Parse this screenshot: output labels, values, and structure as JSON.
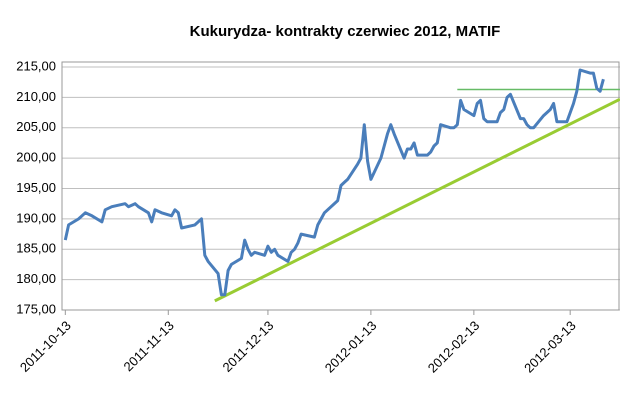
{
  "chart_data": {
    "type": "line",
    "title": "Kukurydza- kontrakty czerwiec 2012, MATIF",
    "x": [
      "2011-10-13",
      "2011-10-14",
      "2011-10-17",
      "2011-10-19",
      "2011-10-21",
      "2011-10-24",
      "2011-10-25",
      "2011-10-27",
      "2011-10-31",
      "2011-11-01",
      "2011-11-03",
      "2011-11-04",
      "2011-11-07",
      "2011-11-08",
      "2011-11-09",
      "2011-11-11",
      "2011-11-14",
      "2011-11-15",
      "2011-11-16",
      "2011-11-17",
      "2011-11-21",
      "2011-11-23",
      "2011-11-24",
      "2011-11-25",
      "2011-11-28",
      "2011-11-29",
      "2011-11-30",
      "2011-12-01",
      "2011-12-02",
      "2011-12-05",
      "2011-12-06",
      "2011-12-07",
      "2011-12-08",
      "2011-12-09",
      "2011-12-12",
      "2011-12-13",
      "2011-12-14",
      "2011-12-15",
      "2011-12-16",
      "2011-12-19",
      "2011-12-20",
      "2011-12-21",
      "2011-12-22",
      "2011-12-23",
      "2011-12-27",
      "2011-12-28",
      "2011-12-29",
      "2011-12-30",
      "2012-01-03",
      "2012-01-04",
      "2012-01-05",
      "2012-01-06",
      "2012-01-09",
      "2012-01-10",
      "2012-01-11",
      "2012-01-12",
      "2012-01-13",
      "2012-01-16",
      "2012-01-17",
      "2012-01-18",
      "2012-01-19",
      "2012-01-20",
      "2012-01-23",
      "2012-01-24",
      "2012-01-25",
      "2012-01-26",
      "2012-01-27",
      "2012-01-30",
      "2012-01-31",
      "2012-02-01",
      "2012-02-02",
      "2012-02-03",
      "2012-02-06",
      "2012-02-07",
      "2012-02-08",
      "2012-02-09",
      "2012-02-10",
      "2012-02-13",
      "2012-02-14",
      "2012-02-15",
      "2012-02-16",
      "2012-02-17",
      "2012-02-20",
      "2012-02-21",
      "2012-02-22",
      "2012-02-23",
      "2012-02-24",
      "2012-02-27",
      "2012-02-28",
      "2012-02-29",
      "2012-03-01",
      "2012-03-02",
      "2012-03-05",
      "2012-03-06",
      "2012-03-07",
      "2012-03-08",
      "2012-03-09",
      "2012-03-12",
      "2012-03-13",
      "2012-03-14",
      "2012-03-15",
      "2012-03-16",
      "2012-03-19",
      "2012-03-20",
      "2012-03-21",
      "2012-03-22",
      "2012-03-23"
    ],
    "series": [
      {
        "color": "#4a7ebb",
        "values": [
          186.5,
          189,
          190,
          191,
          190.5,
          189.5,
          191.5,
          192,
          192.5,
          192,
          192.5,
          192,
          191,
          189.5,
          191.5,
          191,
          190.5,
          191.5,
          191,
          188.5,
          189,
          190,
          184,
          183,
          181,
          177.5,
          177.5,
          181.5,
          182.5,
          183.5,
          186.5,
          185,
          184,
          184.5,
          184,
          185.5,
          184.5,
          185,
          184,
          183,
          184.5,
          185,
          186,
          187.5,
          187,
          189,
          190,
          191,
          193,
          195.5,
          196,
          196.5,
          199,
          200,
          205.5,
          199.5,
          196.5,
          200,
          202,
          204,
          205.5,
          204,
          200,
          201.5,
          201.5,
          202.5,
          200.5,
          200.5,
          201,
          202,
          202.5,
          205.5,
          205,
          205,
          205.5,
          209.5,
          208,
          207,
          209,
          209.5,
          206.5,
          206,
          206,
          207.5,
          208,
          210,
          210.5,
          206.5,
          206.5,
          205.5,
          205,
          205,
          207,
          207.5,
          208,
          209,
          206,
          206,
          207.5,
          209,
          211,
          214.5,
          214,
          214,
          211.5,
          211,
          213
        ]
      }
    ],
    "trendlines": [
      {
        "color": "#99cc33",
        "x": [
          "2011-11-27",
          "2012-03-28"
        ],
        "values": [
          176.5,
          209.7
        ]
      },
      {
        "color": "#66bb66",
        "x": [
          "2012-02-08",
          "2012-03-28"
        ],
        "values": [
          211.3,
          211.3
        ]
      }
    ],
    "xlim": [
      "2011-10-12",
      "2012-03-28"
    ],
    "xticks": [
      "2011-10-13",
      "2011-11-13",
      "2011-12-13",
      "2012-01-13",
      "2012-02-13",
      "2012-03-13"
    ],
    "ylim": [
      175,
      215
    ],
    "yticks": [
      {
        "value": 175,
        "label": "175,00"
      },
      {
        "value": 180,
        "label": "180,00"
      },
      {
        "value": 185,
        "label": "185,00"
      },
      {
        "value": 190,
        "label": "190,00"
      },
      {
        "value": 195,
        "label": "195,00"
      },
      {
        "value": 200,
        "label": "200,00"
      },
      {
        "value": 205,
        "label": "205,00"
      },
      {
        "value": 210,
        "label": "210,00"
      },
      {
        "value": 215,
        "label": "215,00"
      }
    ],
    "grid": true
  }
}
